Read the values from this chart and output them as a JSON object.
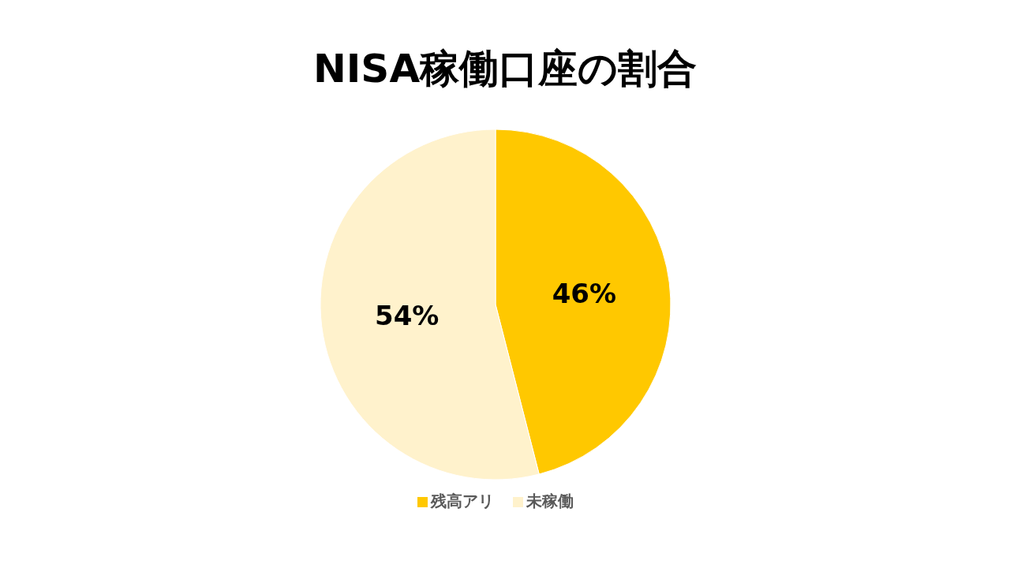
{
  "chart_data": {
    "type": "pie",
    "title": "NISA稼働口座の割合",
    "categories": [
      "残高アリ",
      "未稼働"
    ],
    "values": [
      46,
      54
    ],
    "colors": [
      "#ffc800",
      "#fff2cc"
    ],
    "value_labels": [
      "46%",
      "54%"
    ],
    "legend": "bottom"
  }
}
